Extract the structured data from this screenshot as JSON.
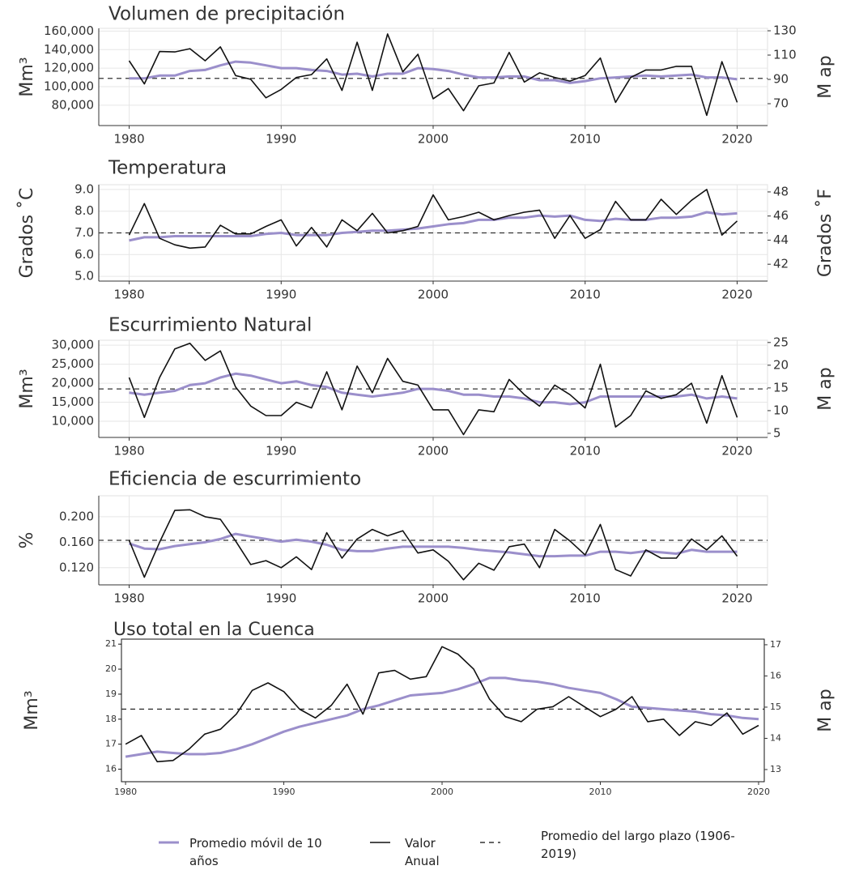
{
  "chart_data": [
    {
      "type": "line",
      "title": "Volumen de precipitación",
      "ylabel": "Mm³",
      "y2label": "M ap",
      "grid": true,
      "x": [
        1980,
        1981,
        1982,
        1983,
        1984,
        1985,
        1986,
        1987,
        1988,
        1989,
        1990,
        1991,
        1992,
        1993,
        1994,
        1995,
        1996,
        1997,
        1998,
        1999,
        2000,
        2001,
        2002,
        2003,
        2004,
        2005,
        2006,
        2007,
        2008,
        2009,
        2010,
        2011,
        2012,
        2013,
        2014,
        2015,
        2016,
        2017,
        2018,
        2019,
        2020
      ],
      "xlim": [
        1978,
        2022
      ],
      "xticks": [
        1980,
        1990,
        2000,
        2010,
        2020
      ],
      "ylim": [
        58000,
        163000
      ],
      "yticks": [
        {
          "value": 80000,
          "label": "80,000"
        },
        {
          "value": 100000,
          "label": "100,000"
        },
        {
          "value": 120000,
          "label": "120,000"
        },
        {
          "value": 140000,
          "label": "140,000"
        },
        {
          "value": 160000,
          "label": "160,000"
        }
      ],
      "y2lim": [
        52,
        132
      ],
      "y2ticks": [
        70,
        90,
        110,
        130
      ],
      "series": [
        {
          "name": "Promedio móvil de 10 años",
          "color": "#9b8fcb",
          "values": [
            109000,
            109000,
            112000,
            112000,
            117000,
            118000,
            123000,
            127000,
            126000,
            123000,
            120000,
            120000,
            118000,
            117000,
            113000,
            114000,
            111000,
            114000,
            114000,
            120000,
            119000,
            117000,
            113000,
            110000,
            110000,
            111000,
            111000,
            107000,
            107000,
            104000,
            106000,
            109000,
            110000,
            111000,
            112000,
            111000,
            112000,
            113000,
            110000,
            110000,
            108000
          ]
        },
        {
          "name": "Valor Anual",
          "color": "#111111",
          "values": [
            128000,
            103000,
            138000,
            137500,
            141000,
            128000,
            143000,
            112000,
            108000,
            88000,
            97000,
            110000,
            113000,
            130000,
            96000,
            148000,
            96000,
            157000,
            116000,
            135000,
            87000,
            98000,
            74000,
            101000,
            104000,
            137000,
            105000,
            115000,
            110000,
            106000,
            112000,
            131000,
            83000,
            110000,
            118000,
            118000,
            122000,
            122000,
            69000,
            127000,
            83000
          ]
        }
      ],
      "reference_line": {
        "name": "Promedio del largo plazo (1906-2019)",
        "value": 109000
      }
    },
    {
      "type": "line",
      "title": "Temperatura",
      "ylabel": "Grados ˚C",
      "y2label": "Grados ˚F",
      "grid": true,
      "x": [
        1980,
        1981,
        1982,
        1983,
        1984,
        1985,
        1986,
        1987,
        1988,
        1989,
        1990,
        1991,
        1992,
        1993,
        1994,
        1995,
        1996,
        1997,
        1998,
        1999,
        2000,
        2001,
        2002,
        2003,
        2004,
        2005,
        2006,
        2007,
        2008,
        2009,
        2010,
        2011,
        2012,
        2013,
        2014,
        2015,
        2016,
        2017,
        2018,
        2019,
        2020
      ],
      "xlim": [
        1978,
        2022
      ],
      "xticks": [
        1980,
        1990,
        2000,
        2010,
        2020
      ],
      "ylim": [
        4.78,
        9.22
      ],
      "yticks": [
        {
          "value": 5,
          "label": "5.0"
        },
        {
          "value": 6,
          "label": "6.0"
        },
        {
          "value": 7,
          "label": "7.0"
        },
        {
          "value": 8,
          "label": "8.0"
        },
        {
          "value": 9,
          "label": "9.0"
        }
      ],
      "y2lim": [
        40.6,
        48.6
      ],
      "y2ticks": [
        42,
        44,
        46,
        48
      ],
      "series": [
        {
          "color": "#9b8fcb",
          "values": [
            6.65,
            6.8,
            6.8,
            6.85,
            6.85,
            6.85,
            6.85,
            6.85,
            6.85,
            6.95,
            7.0,
            6.9,
            6.9,
            6.9,
            7.0,
            7.05,
            7.1,
            7.1,
            7.15,
            7.2,
            7.3,
            7.4,
            7.45,
            7.6,
            7.6,
            7.7,
            7.7,
            7.8,
            7.75,
            7.8,
            7.6,
            7.55,
            7.65,
            7.6,
            7.6,
            7.7,
            7.7,
            7.75,
            7.95,
            7.85,
            7.9
          ]
        },
        {
          "color": "#111111",
          "values": [
            6.9,
            8.35,
            6.75,
            6.45,
            6.3,
            6.35,
            7.35,
            6.95,
            6.95,
            7.3,
            7.6,
            6.4,
            7.25,
            6.35,
            7.6,
            7.1,
            7.9,
            7.0,
            7.1,
            7.3,
            8.75,
            7.6,
            7.75,
            7.95,
            7.6,
            7.8,
            7.95,
            8.05,
            6.75,
            7.8,
            6.75,
            7.15,
            8.45,
            7.6,
            7.6,
            8.55,
            7.85,
            8.5,
            9.0,
            6.9,
            7.55
          ]
        }
      ],
      "reference_line": {
        "value": 7.0
      }
    },
    {
      "type": "line",
      "title": "Escurrimiento Natural",
      "ylabel": "Mm³",
      "y2label": "M ap",
      "grid": true,
      "x": [
        1980,
        1981,
        1982,
        1983,
        1984,
        1985,
        1986,
        1987,
        1988,
        1989,
        1990,
        1991,
        1992,
        1993,
        1994,
        1995,
        1996,
        1997,
        1998,
        1999,
        2000,
        2001,
        2002,
        2003,
        2004,
        2005,
        2006,
        2007,
        2008,
        2009,
        2010,
        2011,
        2012,
        2013,
        2014,
        2015,
        2016,
        2017,
        2018,
        2019,
        2020
      ],
      "xlim": [
        1978,
        2022
      ],
      "xticks": [
        1980,
        1990,
        2000,
        2010,
        2020
      ],
      "ylim": [
        5750,
        31300
      ],
      "yticks": [
        {
          "value": 10000,
          "label": "10,000"
        },
        {
          "value": 15000,
          "label": "15,000"
        },
        {
          "value": 20000,
          "label": "20,000"
        },
        {
          "value": 25000,
          "label": "25,000"
        },
        {
          "value": 30000,
          "label": "30,000"
        }
      ],
      "y2lim": [
        4.1,
        25.5
      ],
      "y2ticks": [
        5,
        10,
        15,
        20,
        25
      ],
      "series": [
        {
          "color": "#9b8fcb",
          "values": [
            17500,
            17000,
            17500,
            18000,
            19500,
            20000,
            21500,
            22500,
            22000,
            21000,
            20000,
            20500,
            19500,
            19000,
            17500,
            17000,
            16500,
            17000,
            17500,
            18500,
            18500,
            18000,
            17000,
            17000,
            16500,
            16500,
            16000,
            15000,
            15000,
            14500,
            15000,
            16500,
            16500,
            16500,
            16500,
            16500,
            16500,
            17000,
            16000,
            16500,
            16000
          ]
        },
        {
          "color": "#111111",
          "values": [
            21500,
            11000,
            21500,
            29000,
            30500,
            26000,
            28500,
            19000,
            14000,
            11500,
            11500,
            15000,
            13500,
            23000,
            13000,
            24500,
            17500,
            26500,
            20500,
            19500,
            13000,
            13000,
            6500,
            13000,
            12500,
            21000,
            17000,
            14000,
            19500,
            17000,
            13500,
            25000,
            8500,
            11500,
            18000,
            16000,
            17000,
            20000,
            9500,
            22000,
            11000
          ]
        }
      ],
      "reference_line": {
        "value": 18500
      }
    },
    {
      "type": "line",
      "title": "Eficiencia de escurrimiento",
      "ylabel": "%",
      "grid": true,
      "x": [
        1980,
        1981,
        1982,
        1983,
        1984,
        1985,
        1986,
        1987,
        1988,
        1989,
        1990,
        1991,
        1992,
        1993,
        1994,
        1995,
        1996,
        1997,
        1998,
        1999,
        2000,
        2001,
        2002,
        2003,
        2004,
        2005,
        2006,
        2007,
        2008,
        2009,
        2010,
        2011,
        2012,
        2013,
        2014,
        2015,
        2016,
        2017,
        2018,
        2019,
        2020
      ],
      "xlim": [
        1978,
        2022
      ],
      "xticks": [
        1980,
        1990,
        2000,
        2010,
        2020
      ],
      "ylim": [
        0.093,
        0.233
      ],
      "yticks": [
        {
          "value": 0.12,
          "label": "0.120"
        },
        {
          "value": 0.16,
          "label": "0.160"
        },
        {
          "value": 0.2,
          "label": "0.200"
        }
      ],
      "series": [
        {
          "color": "#9b8fcb",
          "values": [
            0.158,
            0.15,
            0.149,
            0.154,
            0.157,
            0.16,
            0.165,
            0.173,
            0.169,
            0.165,
            0.161,
            0.164,
            0.161,
            0.156,
            0.148,
            0.146,
            0.146,
            0.15,
            0.153,
            0.153,
            0.153,
            0.153,
            0.151,
            0.148,
            0.146,
            0.144,
            0.141,
            0.138,
            0.138,
            0.139,
            0.139,
            0.145,
            0.145,
            0.143,
            0.146,
            0.144,
            0.142,
            0.148,
            0.145,
            0.1451,
            0.145
          ]
        },
        {
          "color": "#111111",
          "values": [
            0.163,
            0.105,
            0.16,
            0.21,
            0.211,
            0.2,
            0.196,
            0.162,
            0.125,
            0.131,
            0.12,
            0.137,
            0.117,
            0.175,
            0.135,
            0.165,
            0.18,
            0.17,
            0.178,
            0.143,
            0.148,
            0.13,
            0.101,
            0.127,
            0.116,
            0.153,
            0.157,
            0.12,
            0.18,
            0.162,
            0.14,
            0.188,
            0.117,
            0.107,
            0.148,
            0.135,
            0.135,
            0.165,
            0.148,
            0.17,
            0.138
          ]
        }
      ],
      "reference_line": {
        "value": 0.163
      }
    },
    {
      "type": "line",
      "title": "Uso total en la Cuenca",
      "ylabel": "Mm³",
      "y2label": "M ap",
      "grid": false,
      "x": [
        1980,
        1981,
        1982,
        1983,
        1984,
        1985,
        1986,
        1987,
        1988,
        1989,
        1990,
        1991,
        1992,
        1993,
        1994,
        1995,
        1996,
        1997,
        1998,
        1999,
        2000,
        2001,
        2002,
        2003,
        2004,
        2005,
        2006,
        2007,
        2008,
        2009,
        2010,
        2011,
        2012,
        2013,
        2014,
        2015,
        2016,
        2017,
        2018,
        2019,
        2020
      ],
      "xlim": [
        1979.74,
        2020.36
      ],
      "xticks": [
        1980,
        1990,
        2000,
        2010,
        2020
      ],
      "ylim": [
        15.5,
        21.2
      ],
      "yticks": [
        16,
        17,
        18,
        19,
        20,
        21
      ],
      "y2lim": [
        12.61,
        17.18
      ],
      "y2ticks": [
        13,
        14,
        15,
        16,
        17
      ],
      "series": [
        {
          "color": "#9b8fcb",
          "values": [
            16.5,
            16.6,
            16.7,
            16.65,
            16.6,
            16.6,
            16.65,
            16.8,
            17.0,
            17.25,
            17.5,
            17.7,
            17.85,
            18.0,
            18.15,
            18.4,
            18.55,
            18.75,
            18.95,
            19.0,
            19.05,
            19.2,
            19.4,
            19.65,
            19.65,
            19.55,
            19.5,
            19.4,
            19.25,
            19.15,
            19.05,
            18.8,
            18.5,
            18.45,
            18.4,
            18.35,
            18.3,
            18.2,
            18.15,
            18.05,
            18.0
          ]
        },
        {
          "color": "#111111",
          "values": [
            17.0,
            17.35,
            16.3,
            16.35,
            16.8,
            17.4,
            17.6,
            18.2,
            19.15,
            19.45,
            19.1,
            18.4,
            18.05,
            18.55,
            19.4,
            18.2,
            19.85,
            19.95,
            19.6,
            19.7,
            20.9,
            20.6,
            20.0,
            18.8,
            18.1,
            17.9,
            18.4,
            18.5,
            18.9,
            18.5,
            18.1,
            18.4,
            18.9,
            17.9,
            18.0,
            17.35,
            17.9,
            17.75,
            18.25,
            17.4,
            17.75
          ]
        }
      ],
      "reference_line": {
        "value": 18.4
      }
    }
  ]
}
